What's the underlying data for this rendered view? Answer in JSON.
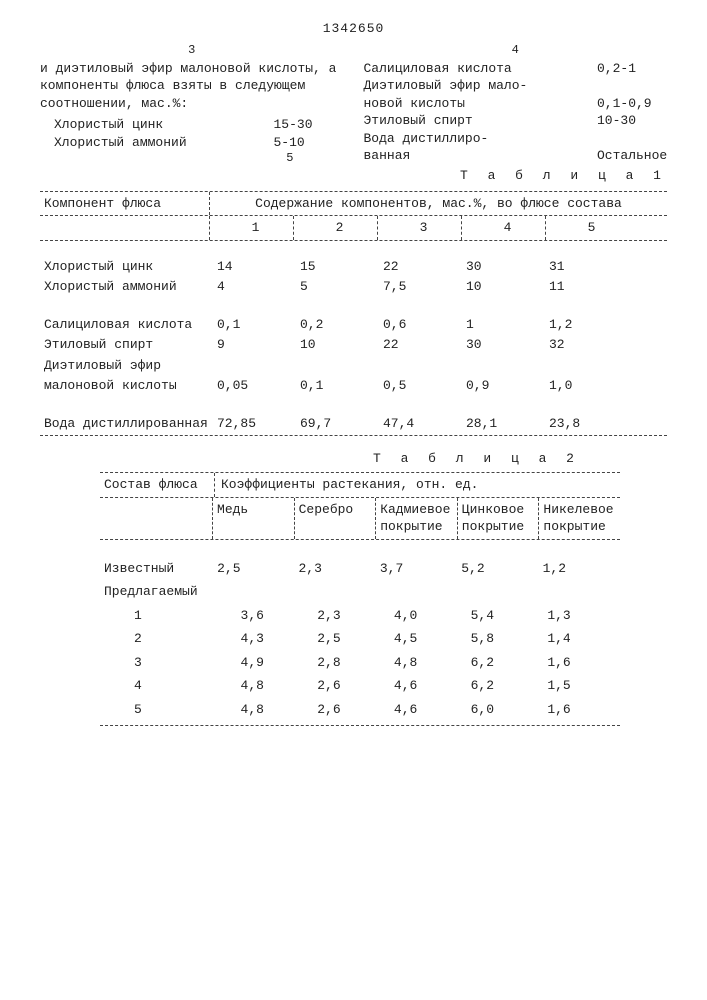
{
  "header": {
    "col_left_num": "3",
    "col_right_num": "4",
    "doc_number": "1342650",
    "marginal_num": "5"
  },
  "left_col": {
    "para": "и диэтиловый эфир малоновой кислоты, а компоненты флюса взяты в следующем соотношении, мас.%:",
    "items": [
      {
        "label": "Хлористый цинк",
        "value": "15-30"
      },
      {
        "label": "Хлористый аммоний",
        "value": "5-10"
      }
    ]
  },
  "right_col": {
    "items": [
      {
        "label": "Салициловая кислота",
        "value": "0,2-1"
      },
      {
        "label": "Диэтиловый эфир мало-",
        "value": ""
      },
      {
        "label": "новой кислоты",
        "value": "0,1-0,9"
      },
      {
        "label": "Этиловый спирт",
        "value": "10-30"
      },
      {
        "label": "Вода дистиллиро-",
        "value": ""
      },
      {
        "label": "ванная",
        "value": "Остальное"
      }
    ]
  },
  "table1": {
    "title": "Т а б л и ц а  1",
    "header_left": "Компонент флюса",
    "header_right": "Содержание компонентов, мас.%, во флюсе состава",
    "cols": [
      "1",
      "2",
      "3",
      "4",
      "5"
    ],
    "rows": [
      {
        "label": "Хлористый цинк",
        "v": [
          "14",
          "15",
          "22",
          "30",
          "31"
        ]
      },
      {
        "label": "Хлористый аммоний",
        "v": [
          "4",
          "5",
          "7,5",
          "10",
          "11"
        ]
      },
      {
        "label": "Салициловая кислота",
        "v": [
          "0,1",
          "0,2",
          "0,6",
          "1",
          "1,2"
        ]
      },
      {
        "label": "Этиловый спирт",
        "v": [
          "9",
          "10",
          "22",
          "30",
          "32"
        ]
      },
      {
        "label": "Диэтиловый эфир",
        "v": [
          "",
          "",
          "",
          "",
          ""
        ]
      },
      {
        "label": "малоновой кислоты",
        "v": [
          "0,05",
          "0,1",
          "0,5",
          "0,9",
          "1,0"
        ]
      },
      {
        "label": "Вода дистиллированная",
        "v": [
          "72,85",
          "69,7",
          "47,4",
          "28,1",
          "23,8"
        ]
      }
    ]
  },
  "table2": {
    "title": "Т а б л и ц а  2",
    "header_left": "Состав флюса",
    "header_right": "Коэффициенты растекания, отн. ед.",
    "cols": [
      "Медь",
      "Серебро",
      "Кадмиевое покрытие",
      "Цинковое покрытие",
      "Никелевое покрытие"
    ],
    "rows": [
      {
        "label": "Известный",
        "v": [
          "2,5",
          "2,3",
          "3,7",
          "5,2",
          "1,2"
        ]
      },
      {
        "label": "Предлагаемый",
        "v": [
          "",
          "",
          "",
          "",
          ""
        ]
      },
      {
        "label": "1",
        "v": [
          "3,6",
          "2,3",
          "4,0",
          "5,4",
          "1,3"
        ],
        "indent": true
      },
      {
        "label": "2",
        "v": [
          "4,3",
          "2,5",
          "4,5",
          "5,8",
          "1,4"
        ],
        "indent": true
      },
      {
        "label": "3",
        "v": [
          "4,9",
          "2,8",
          "4,8",
          "6,2",
          "1,6"
        ],
        "indent": true
      },
      {
        "label": "4",
        "v": [
          "4,8",
          "2,6",
          "4,6",
          "6,2",
          "1,5"
        ],
        "indent": true
      },
      {
        "label": "5",
        "v": [
          "4,8",
          "2,6",
          "4,6",
          "6,0",
          "1,6"
        ],
        "indent": true
      }
    ]
  }
}
